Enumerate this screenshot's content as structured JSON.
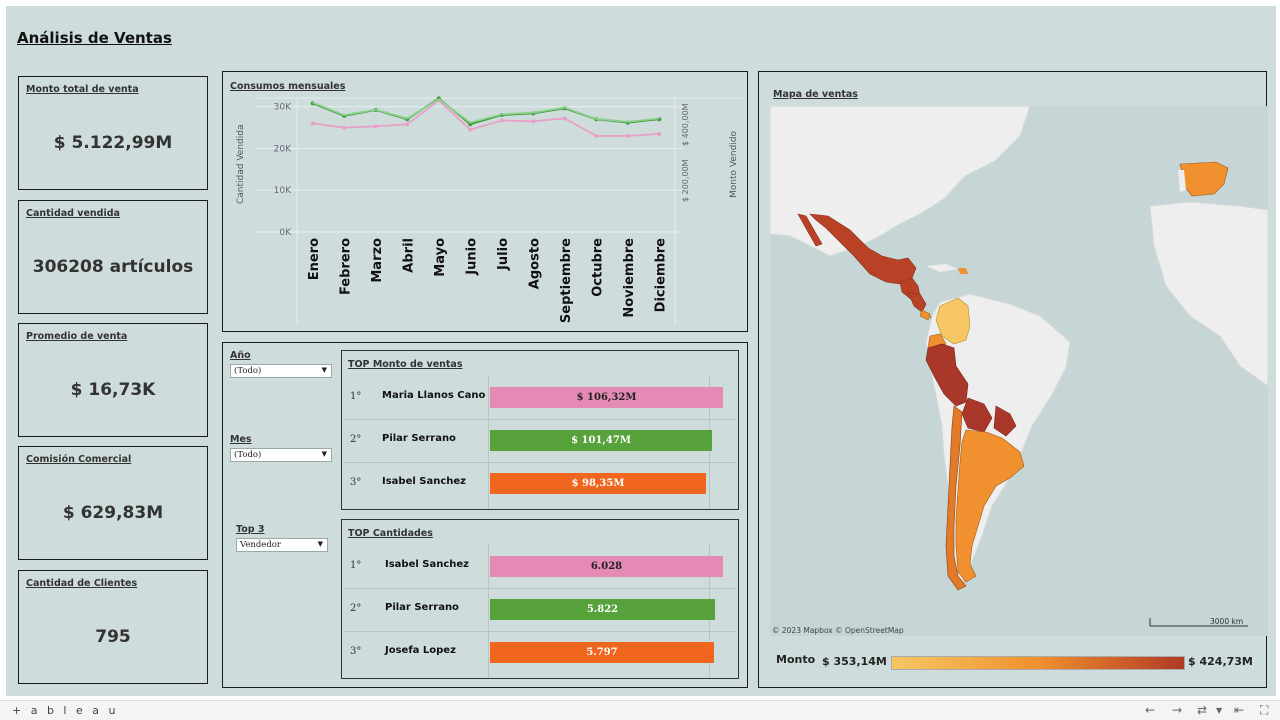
{
  "dashboard": {
    "title": "Análisis de Ventas"
  },
  "kpis": [
    {
      "label": "Monto total de venta",
      "value": "$ 5.122,99M"
    },
    {
      "label": "Cantidad vendida",
      "value": "306208 artículos"
    },
    {
      "label": "Promedio de venta",
      "value": "$ 16,73K"
    },
    {
      "label": "Comisión Comercial",
      "value": "$ 629,83M"
    },
    {
      "label": "Cantidad de Clientes",
      "value": "795"
    }
  ],
  "monthly": {
    "title": "Consumos mensuales",
    "y_left_label": "Cantidad Vendida",
    "y_right_label": "Monto Vendido",
    "y_right_ticks": [
      "$ 200,00M",
      "$ 400,00M"
    ],
    "y_left_ticks": [
      "30K",
      "20K",
      "10K",
      "0K"
    ]
  },
  "chart_data": {
    "type": "line",
    "title": "Consumos mensuales",
    "categories": [
      "Enero",
      "Febrero",
      "Marzo",
      "Abril",
      "Mayo",
      "Junio",
      "Julio",
      "Agosto",
      "Septiembre",
      "Octubre",
      "Noviembre",
      "Diciembre"
    ],
    "series": [
      {
        "values": [
          30800,
          27800,
          29200,
          27000,
          32000,
          25800,
          28000,
          28400,
          29600,
          27000,
          26200,
          27000
        ],
        "color": "#3f9a3f"
      },
      {
        "values": [
          26000,
          25000,
          25300,
          25800,
          31500,
          24500,
          26700,
          26500,
          27200,
          23000,
          23000,
          23500
        ],
        "color": "#e8a0c8"
      },
      {
        "values": [
          31000,
          28000,
          29300,
          27200,
          31800,
          26200,
          28200,
          28600,
          29800,
          27100,
          26400,
          27200
        ],
        "color": "#8ed18e"
      }
    ],
    "ylabel": "Cantidad Vendida",
    "ylim": [
      0,
      34000
    ],
    "grid": true
  },
  "filters": {
    "year_label": "Año",
    "year_value": "(Todo)",
    "month_label": "Mes",
    "month_value": "(Todo)",
    "top_label": "Top 3",
    "top_value": "Vendedor"
  },
  "top_monto": {
    "title": "TOP Monto de ventas",
    "rows": [
      {
        "rank": "1°",
        "name": "Maria Llanos Cano",
        "value": "$ 106,32M",
        "fraction": 1.0,
        "color": "#e48ab4",
        "text_color": "#222"
      },
      {
        "rank": "2°",
        "name": "Pilar Serrano",
        "value": "$ 101,47M",
        "fraction": 0.954,
        "color": "#57a23a",
        "text_color": "#ffffff"
      },
      {
        "rank": "3°",
        "name": "Isabel Sanchez",
        "value": "$ 98,35M",
        "fraction": 0.925,
        "color": "#f0661e",
        "text_color": "#ffffff"
      }
    ]
  },
  "top_cantidades": {
    "title": "TOP Cantidades",
    "rows": [
      {
        "rank": "1°",
        "name": "Isabel Sanchez",
        "value": "6.028",
        "fraction": 1.0,
        "color": "#e48ab4",
        "text_color": "#222"
      },
      {
        "rank": "2°",
        "name": "Pilar Serrano",
        "value": "5.822",
        "fraction": 0.966,
        "color": "#57a23a",
        "text_color": "#ffffff"
      },
      {
        "rank": "3°",
        "name": "Josefa Lopez",
        "value": "5.797",
        "fraction": 0.962,
        "color": "#f0661e",
        "text_color": "#ffffff"
      }
    ]
  },
  "map": {
    "title": "Mapa de ventas",
    "attribution": "© 2023 Mapbox  © OpenStreetMap",
    "scale": "3000 km",
    "legend_label": "Monto",
    "legend_min": "$ 353,14M",
    "legend_max": "$ 424,73M",
    "legend_colors": [
      "#f6c764",
      "#f0902e",
      "#b03a24"
    ]
  },
  "footer": {
    "logo": "+ a b l e a u"
  }
}
